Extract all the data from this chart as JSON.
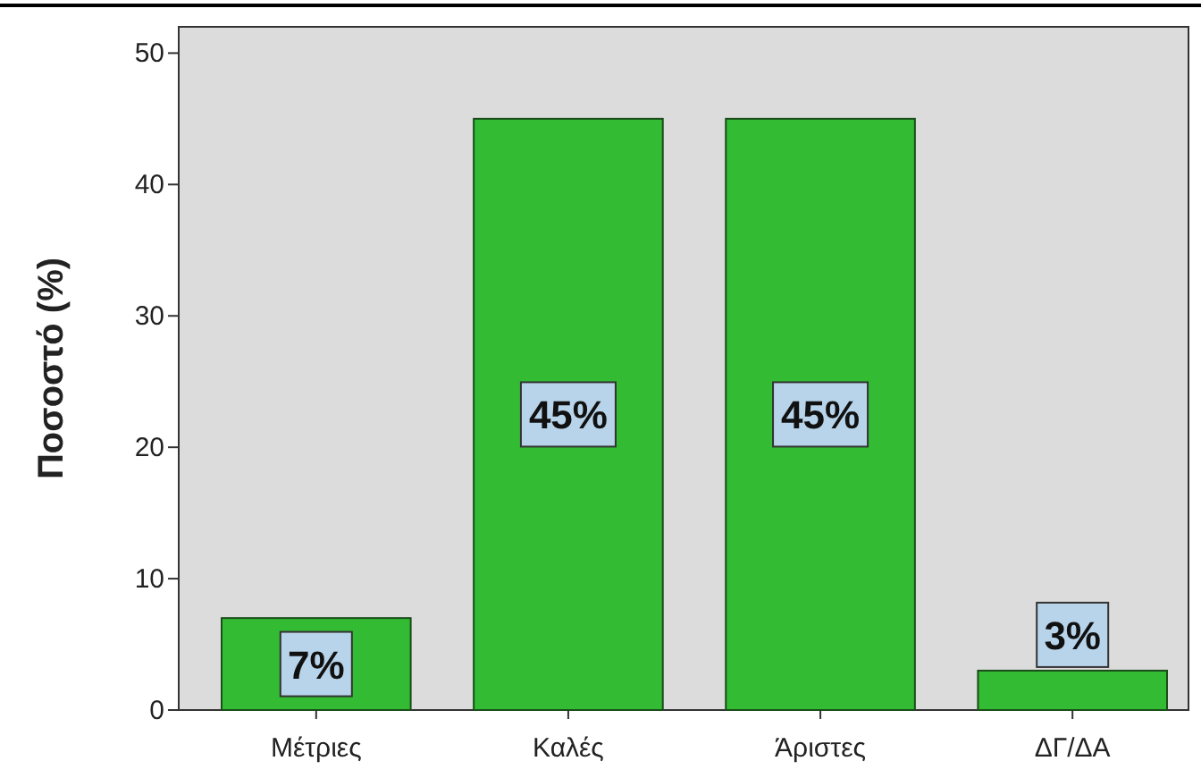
{
  "chart_data": {
    "type": "bar",
    "ylabel": "Ποσοστό (%)",
    "categories": [
      "Μέτριες",
      "Καλές",
      "Άριστες",
      "ΔΓ/ΔΑ"
    ],
    "values": [
      7,
      45,
      45,
      3
    ],
    "value_labels": [
      "7%",
      "45%",
      "45%",
      "3%"
    ],
    "color": "#33bb33",
    "ylim": [
      0,
      52
    ],
    "yticks": [
      0,
      10,
      20,
      30,
      40,
      50
    ],
    "grid": false
  }
}
